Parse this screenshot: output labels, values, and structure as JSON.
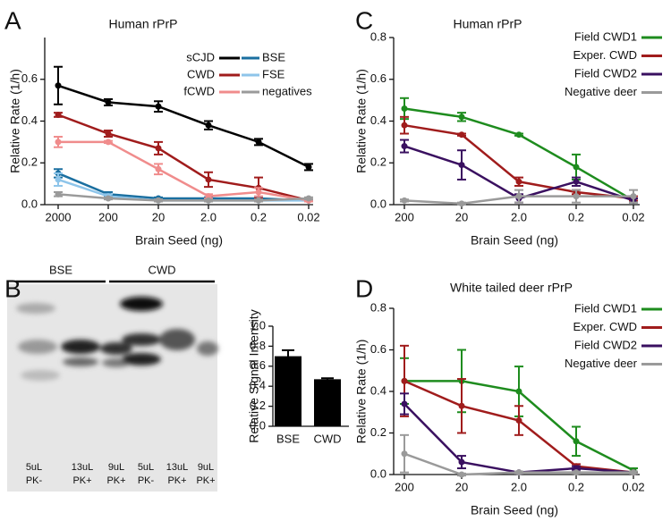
{
  "chart_data": [
    {
      "type": "line",
      "label": "A",
      "title": "Human rPrP",
      "xlabel": "Brain Seed (ng)",
      "ylabel": "Relative Rate (1/h)",
      "categories": [
        "2000",
        "200",
        "20",
        "2.0",
        "0.2",
        "0.02"
      ],
      "ylim": [
        0,
        0.8
      ],
      "yticks": [
        {
          "value": 0,
          "label": "0.0"
        },
        0.2,
        0.4,
        0.6
      ],
      "series": [
        {
          "name": "sCJD",
          "color": "#000000",
          "values": [
            0.57,
            0.49,
            0.47,
            0.38,
            0.3,
            0.18
          ],
          "errors": [
            0.09,
            0.015,
            0.025,
            0.02,
            0.015,
            0.015
          ]
        },
        {
          "name": "BSE",
          "color": "#1a6fa0",
          "values": [
            0.15,
            0.05,
            0.03,
            0.03,
            0.03,
            0.02
          ],
          "errors": [
            0.02,
            0.01,
            0.005,
            0.005,
            0.005,
            0.005
          ]
        },
        {
          "name": "CWD",
          "color": "#a01c1c",
          "values": [
            0.43,
            0.34,
            0.27,
            0.12,
            0.08,
            0.02
          ],
          "errors": [
            0.01,
            0.015,
            0.03,
            0.035,
            0.05,
            0.005
          ]
        },
        {
          "name": "FSE",
          "color": "#8ec5ea",
          "values": [
            0.12,
            0.04,
            0.02,
            0.02,
            0.02,
            0.02
          ],
          "errors": [
            0.03,
            0.01,
            0.005,
            0.005,
            0.005,
            0.005
          ]
        },
        {
          "name": "fCWD",
          "color": "#f08c8c",
          "values": [
            0.3,
            0.3,
            0.17,
            0.04,
            0.06,
            0.02
          ],
          "errors": [
            0.025,
            0.005,
            0.025,
            0.01,
            0.02,
            0.005
          ]
        },
        {
          "name": "negatives",
          "color": "#9a9a9a",
          "values": [
            0.05,
            0.03,
            0.02,
            0.02,
            0.02,
            0.03
          ],
          "errors": [
            0.01,
            0.005,
            0.005,
            0.005,
            0.005,
            0.005
          ]
        }
      ]
    },
    {
      "type": "bar",
      "label": "B",
      "ylabel": "Relative Signal Intensity",
      "blot": {
        "groups": [
          "BSE",
          "CWD"
        ],
        "lanes": [
          [
            "5uL",
            "PK-"
          ],
          [
            "13uL",
            "PK+"
          ],
          [
            "9uL",
            "PK+"
          ],
          [
            "5uL",
            "PK-"
          ],
          [
            "13uL",
            "PK+"
          ],
          [
            "9uL",
            "PK+"
          ]
        ]
      },
      "categories": [
        "BSE",
        "CWD"
      ],
      "values": [
        0.7,
        0.47
      ],
      "errors": [
        0.06,
        0.01
      ],
      "color": "#000000",
      "ylim": [
        0,
        1.0
      ],
      "yticks": [
        {
          "value": 0,
          "label": "0.0"
        },
        0.2,
        0.4,
        0.6,
        0.8,
        {
          "value": 1,
          "label": "1.0"
        }
      ]
    },
    {
      "type": "line",
      "label": "C",
      "title": "Human rPrP",
      "xlabel": "Brain Seed (ng)",
      "ylabel": "Relative Rate (1/h)",
      "categories": [
        "200",
        "20",
        "2.0",
        "0.2",
        "0.02"
      ],
      "ylim": [
        0,
        0.8
      ],
      "yticks": [
        {
          "value": 0,
          "label": "0.0"
        },
        0.2,
        0.4,
        0.6,
        0.8
      ],
      "series": [
        {
          "name": "Field CWD1",
          "color": "#1e8c1e",
          "values": [
            0.46,
            0.42,
            0.335,
            0.18,
            0.02
          ],
          "errors": [
            0.05,
            0.02,
            0.005,
            0.06,
            0.01
          ]
        },
        {
          "name": "Exper. CWD",
          "color": "#a01c1c",
          "values": [
            0.38,
            0.335,
            0.11,
            0.06,
            0.03
          ],
          "errors": [
            0.04,
            0.005,
            0.02,
            0.01,
            0.01
          ]
        },
        {
          "name": "Field CWD2",
          "color": "#3a1060",
          "values": [
            0.28,
            0.19,
            0.03,
            0.11,
            0.02
          ],
          "errors": [
            0.03,
            0.07,
            0.02,
            0.02,
            0.01
          ]
        },
        {
          "name": "Negative deer",
          "color": "#9a9a9a",
          "values": [
            0.02,
            0.005,
            0.04,
            0.04,
            0.04
          ],
          "errors": [
            0.005,
            0.005,
            0.03,
            0.03,
            0.03
          ]
        }
      ]
    },
    {
      "type": "line",
      "label": "D",
      "title": "White tailed deer rPrP",
      "xlabel": "Brain Seed (ng)",
      "ylabel": "Relative Rate (1/h)",
      "categories": [
        "200",
        "20",
        "2.0",
        "0.2",
        "0.02"
      ],
      "ylim": [
        0,
        0.8
      ],
      "yticks": [
        {
          "value": 0,
          "label": "0.0"
        },
        0.2,
        0.4,
        0.6,
        0.8
      ],
      "series": [
        {
          "name": "Field CWD1",
          "color": "#1e8c1e",
          "values": [
            0.45,
            0.45,
            0.4,
            0.16,
            0.02
          ],
          "errors": [
            0.11,
            0.15,
            0.12,
            0.07,
            0.01
          ]
        },
        {
          "name": "Exper. CWD",
          "color": "#a01c1c",
          "values": [
            0.45,
            0.33,
            0.26,
            0.04,
            0.01
          ],
          "errors": [
            0.17,
            0.13,
            0.07,
            0.01,
            0.005
          ]
        },
        {
          "name": "Field CWD2",
          "color": "#3a1060",
          "values": [
            0.34,
            0.06,
            0.01,
            0.03,
            0.01
          ],
          "errors": [
            0.05,
            0.03,
            0.005,
            0.01,
            0.005
          ]
        },
        {
          "name": "Negative deer",
          "color": "#9a9a9a",
          "values": [
            0.1,
            0.0,
            0.01,
            0.01,
            0.01
          ],
          "errors": [
            0.09,
            0.005,
            0.005,
            0.005,
            0.005
          ]
        }
      ]
    }
  ]
}
